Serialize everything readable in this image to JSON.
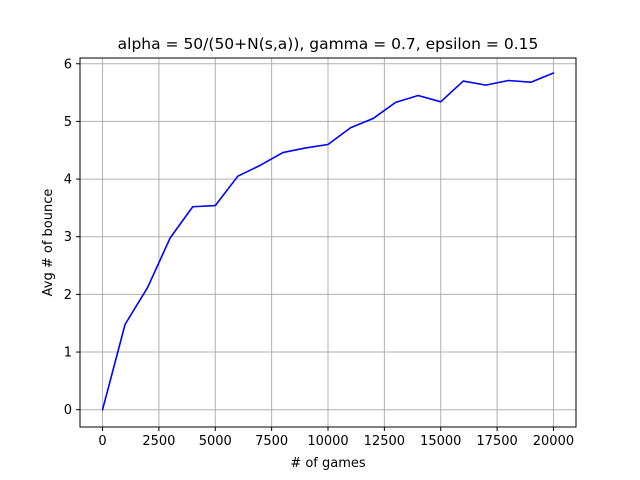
{
  "chart_data": {
    "type": "line",
    "title": "alpha = 50/(50+N(s,a)), gamma = 0.7, epsilon = 0.15",
    "xlabel": "# of games",
    "ylabel": "Avg # of bounce",
    "xlim": [
      -1000,
      21000
    ],
    "ylim": [
      -0.3,
      6.1
    ],
    "xticks": [
      0,
      2500,
      5000,
      7500,
      10000,
      12500,
      15000,
      17500,
      20000
    ],
    "yticks": [
      0,
      1,
      2,
      3,
      4,
      5,
      6
    ],
    "grid": true,
    "series": [
      {
        "color": "#0000ff",
        "x": [
          0,
          1000,
          2000,
          3000,
          4000,
          5000,
          6000,
          7000,
          8000,
          9000,
          10000,
          11000,
          12000,
          13000,
          14000,
          15000,
          16000,
          17000,
          18000,
          19000,
          20000
        ],
        "y": [
          0.0,
          1.48,
          2.12,
          2.98,
          3.52,
          3.54,
          4.05,
          4.24,
          4.46,
          4.54,
          4.6,
          4.89,
          5.05,
          5.33,
          5.45,
          5.34,
          5.7,
          5.63,
          5.71,
          5.68,
          5.84
        ]
      }
    ]
  }
}
